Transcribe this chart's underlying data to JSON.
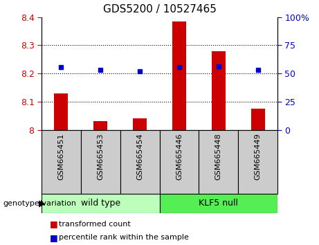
{
  "title": "GDS5200 / 10527465",
  "categories": [
    "GSM665451",
    "GSM665453",
    "GSM665454",
    "GSM665446",
    "GSM665448",
    "GSM665449"
  ],
  "red_values": [
    8.13,
    8.03,
    8.04,
    8.385,
    8.28,
    8.075
  ],
  "blue_values": [
    8.222,
    8.213,
    8.207,
    8.223,
    8.224,
    8.212
  ],
  "ylim_left": [
    8.0,
    8.4
  ],
  "ylim_right": [
    0,
    100
  ],
  "yticks_left": [
    8.0,
    8.1,
    8.2,
    8.3,
    8.4
  ],
  "yticks_right": [
    0,
    25,
    50,
    75,
    100
  ],
  "ytick_labels_left": [
    "8",
    "8.1",
    "8.2",
    "8.3",
    "8.4"
  ],
  "ytick_labels_right": [
    "0",
    "25",
    "50",
    "75",
    "100%"
  ],
  "group1_label": "wild type",
  "group2_label": "KLF5 null",
  "group1_indices": [
    0,
    1,
    2
  ],
  "group2_indices": [
    3,
    4,
    5
  ],
  "group1_color": "#bbffbb",
  "group2_color": "#55ee55",
  "sample_box_color": "#cccccc",
  "bar_color": "#cc0000",
  "square_color": "#0000cc",
  "bar_baseline": 8.0,
  "legend_label_red": "transformed count",
  "legend_label_blue": "percentile rank within the sample",
  "genotype_label": "genotype/variation",
  "left_tick_color": "#cc0000",
  "right_tick_color": "#0000cc",
  "grid_yticks": [
    8.1,
    8.2,
    8.3
  ],
  "fig_width": 4.61,
  "fig_height": 3.54,
  "dpi": 100
}
